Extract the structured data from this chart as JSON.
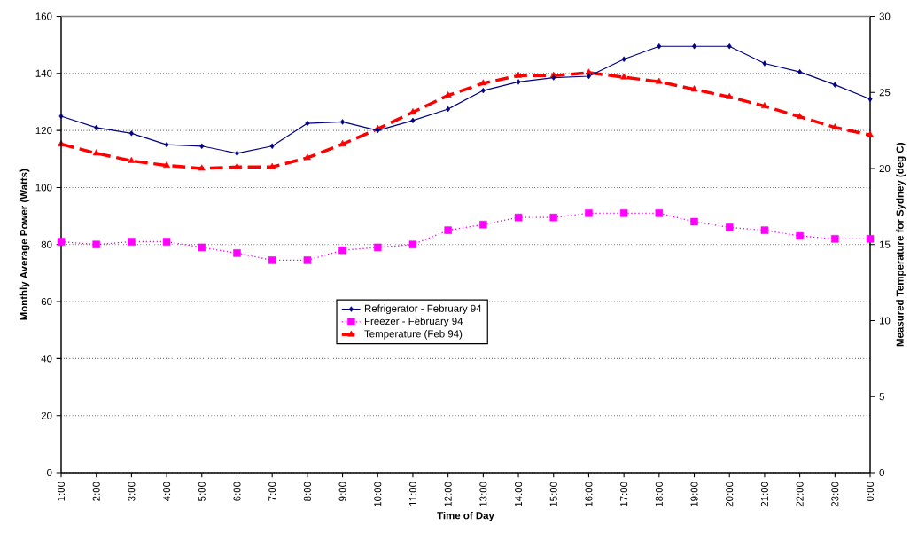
{
  "chart_data": {
    "type": "line",
    "xlabel": "Time of Day",
    "ylabel": "Monthly Average Power (Watts)",
    "y2label": "Measured Temperature for Sydney (deg C)",
    "categories": [
      "1:00",
      "2:00",
      "3:00",
      "4:00",
      "5:00",
      "6:00",
      "7:00",
      "8:00",
      "9:00",
      "10:00",
      "11:00",
      "12:00",
      "13:00",
      "14:00",
      "15:00",
      "16:00",
      "17:00",
      "18:00",
      "19:00",
      "20:00",
      "21:00",
      "22:00",
      "23:00",
      "0:00"
    ],
    "series": [
      {
        "name": "Refrigerator - February 94",
        "color": "#000080",
        "marker": "diamond",
        "line_style": "solid",
        "values": [
          125,
          121,
          119,
          115,
          114.5,
          112,
          114.5,
          122.5,
          123,
          120,
          123.5,
          127.5,
          134,
          137,
          138.5,
          139,
          145,
          149.5,
          149.5,
          149.5,
          143.5,
          140.5,
          136,
          131
        ]
      },
      {
        "name": "Freezer - February 94",
        "color": "#ff00ff",
        "marker": "square",
        "line_style": "dotted",
        "values": [
          81,
          80,
          81,
          81,
          79,
          77,
          74.5,
          74.5,
          78,
          79,
          80,
          85,
          87,
          89.5,
          89.5,
          91,
          91,
          91,
          88,
          86,
          85,
          83,
          82,
          82
        ]
      },
      {
        "name": "Temperature (Feb 94)",
        "color": "#ff0000",
        "marker": "triangle",
        "line_style": "dashed",
        "axis": "y2",
        "values": [
          21.6,
          21.0,
          20.5,
          20.2,
          20.0,
          20.1,
          20.1,
          20.7,
          21.6,
          22.6,
          23.7,
          24.8,
          25.6,
          26.1,
          26.1,
          26.3,
          26.0,
          25.7,
          25.2,
          24.7,
          24.1,
          23.4,
          22.7,
          22.2
        ]
      }
    ],
    "ylim": [
      0,
      160
    ],
    "yticks": [
      0,
      20,
      40,
      60,
      80,
      100,
      120,
      140,
      160
    ],
    "y2lim": [
      0,
      30
    ],
    "y2ticks": [
      0,
      5,
      10,
      15,
      20,
      25,
      30
    ],
    "grid": "y",
    "legend": "center"
  }
}
